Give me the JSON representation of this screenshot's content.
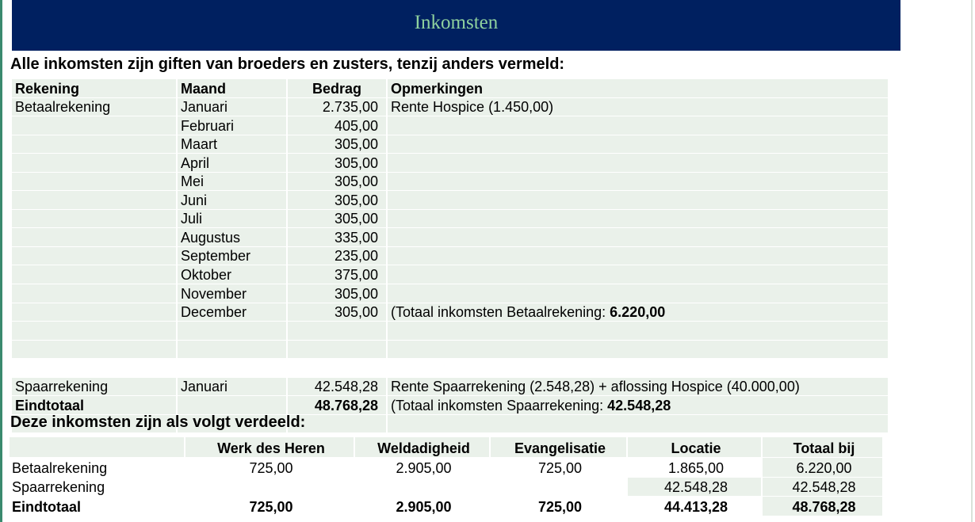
{
  "banner": {
    "title": "Inkomsten"
  },
  "income_heading": "Alle inkomsten zijn giften van broeders en zusters, tenzij anders vermeld:",
  "income_table": {
    "headers": [
      "Rekening",
      "Maand",
      "Bedrag",
      "Opmerkingen"
    ],
    "rows": [
      {
        "rekening": "Betaalrekening",
        "maand": "Januari",
        "bedrag": "2.735,00",
        "opm": "Rente Hospice (1.450,00)",
        "opm_bold": ""
      },
      {
        "rekening": "",
        "maand": "Februari",
        "bedrag": "405,00",
        "opm": "",
        "opm_bold": ""
      },
      {
        "rekening": "",
        "maand": "Maart",
        "bedrag": "305,00",
        "opm": "",
        "opm_bold": ""
      },
      {
        "rekening": "",
        "maand": "April",
        "bedrag": "305,00",
        "opm": "",
        "opm_bold": ""
      },
      {
        "rekening": "",
        "maand": "Mei",
        "bedrag": "305,00",
        "opm": "",
        "opm_bold": ""
      },
      {
        "rekening": "",
        "maand": "Juni",
        "bedrag": "305,00",
        "opm": "",
        "opm_bold": ""
      },
      {
        "rekening": "",
        "maand": "Juli",
        "bedrag": "305,00",
        "opm": "",
        "opm_bold": ""
      },
      {
        "rekening": "",
        "maand": "Augustus",
        "bedrag": "335,00",
        "opm": "",
        "opm_bold": ""
      },
      {
        "rekening": "",
        "maand": "September",
        "bedrag": "235,00",
        "opm": "",
        "opm_bold": ""
      },
      {
        "rekening": "",
        "maand": "Oktober",
        "bedrag": "375,00",
        "opm": "",
        "opm_bold": ""
      },
      {
        "rekening": "",
        "maand": "November",
        "bedrag": "305,00",
        "opm": "",
        "opm_bold": ""
      },
      {
        "rekening": "",
        "maand": "December",
        "bedrag": "305,00",
        "opm": "(Totaal inkomsten Betaalrekening: ",
        "opm_bold": "6.220,00"
      }
    ],
    "spaar": {
      "rekening": "Spaarrekening",
      "maand": "Januari",
      "bedrag": "42.548,28",
      "opm": "Rente Spaarrekening (2.548,28) + aflossing Hospice (40.000,00)"
    },
    "total": {
      "label": "Eindtotaal",
      "bedrag": "48.768,28",
      "opm": "(Totaal inkomsten Spaarrekening: ",
      "opm_bold": "42.548,28"
    }
  },
  "dist_heading": "Deze inkomsten zijn als volgt verdeeld:",
  "dist_table": {
    "headers": [
      "",
      "Werk des Heren",
      "Weldadigheid",
      "Evangelisatie",
      "Locatie",
      "Totaal bij"
    ],
    "rows": [
      [
        "Betaalrekening",
        "725,00",
        "2.905,00",
        "725,00",
        "1.865,00",
        "6.220,00"
      ],
      [
        "Spaarrekening",
        "",
        "",
        "",
        "42.548,28",
        "42.548,28"
      ],
      [
        "Eindtotaal",
        "725,00",
        "2.905,00",
        "725,00",
        "44.413,28",
        "48.768,28"
      ]
    ]
  }
}
